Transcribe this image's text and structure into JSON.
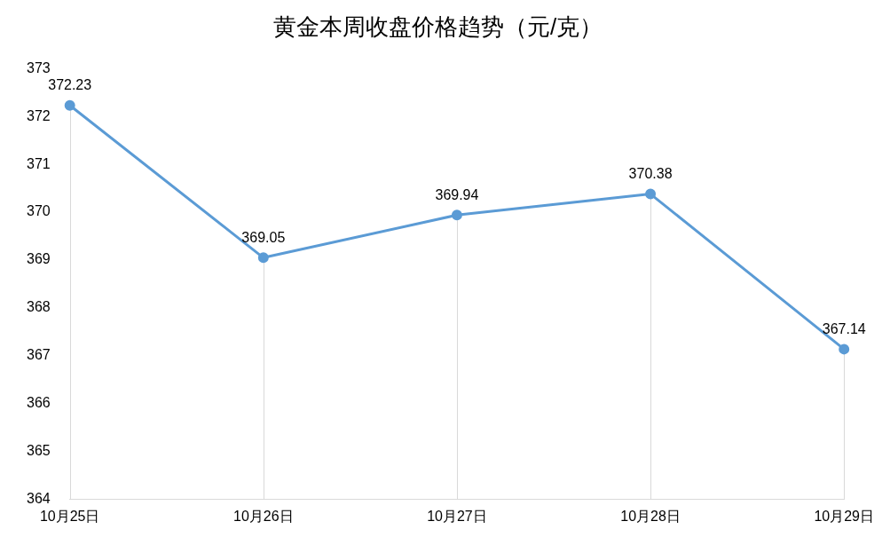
{
  "chart_data": {
    "type": "line",
    "title": "黄金本周收盘价格趋势（元/克）",
    "categories": [
      "10月25日",
      "10月26日",
      "10月27日",
      "10月28日",
      "10月29日"
    ],
    "series": [
      {
        "color": "#5b9bd5",
        "values": [
          372.23,
          369.05,
          369.94,
          370.38,
          367.14
        ]
      }
    ],
    "ylim": [
      364,
      373
    ],
    "yticks": [
      364,
      365,
      366,
      367,
      368,
      369,
      370,
      371,
      372,
      373
    ],
    "grid": "x",
    "legend": false,
    "marker": "circle",
    "line_style": "solid",
    "data_labels": true
  }
}
